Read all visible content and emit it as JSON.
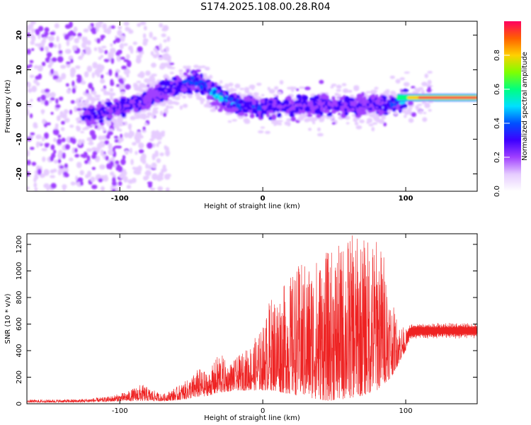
{
  "page": {
    "title": "S174.2025.108.00.28.R04"
  },
  "colors": {
    "scale": [
      "#ffffff",
      "#e6ccff",
      "#a040ff",
      "#3d00ff",
      "#0050ff",
      "#00e0ff",
      "#00ff80",
      "#80ff00",
      "#ffd000",
      "#ff6000",
      "#ff0060"
    ],
    "snr_line": "#ee2222"
  },
  "chart_data": [
    {
      "type": "heatmap",
      "xlabel": "Height of straight line (km)",
      "ylabel": "Frequency (Hz)",
      "xlim": [
        -165,
        150
      ],
      "ylim": [
        -25,
        24
      ],
      "x_ticks": [
        -100,
        0,
        100
      ],
      "y_ticks": [
        -20,
        -10,
        0,
        10,
        20
      ],
      "x_tick_labels": [
        "-100",
        "0",
        "100"
      ],
      "y_tick_labels": [
        "-20",
        "-10",
        "0",
        "10",
        "20"
      ],
      "grid": false,
      "ridge": {
        "x": [
          -125,
          -110,
          -90,
          -75,
          -60,
          -48,
          -40,
          -33,
          -25,
          -15,
          0,
          10,
          20,
          30,
          40,
          50,
          60,
          70,
          80,
          88,
          95,
          105,
          115,
          130,
          150
        ],
        "frequency": [
          -3,
          -2,
          0,
          3,
          5,
          7,
          5,
          3,
          1,
          0,
          -1,
          -1,
          -0.5,
          0,
          -0.5,
          0,
          -1,
          -0.5,
          0,
          0,
          1,
          2,
          2,
          2,
          2
        ],
        "amplitude": [
          0.35,
          0.35,
          0.3,
          0.3,
          0.35,
          0.45,
          0.45,
          0.6,
          0.55,
          0.45,
          0.35,
          0.35,
          0.35,
          0.3,
          0.3,
          0.3,
          0.3,
          0.3,
          0.3,
          0.4,
          0.55,
          0.75,
          0.9,
          1.0,
          1.0
        ]
      },
      "colorbar": {
        "label": "Normalized spectral amplitude",
        "range": [
          0,
          1
        ],
        "ticks": [
          0.0,
          0.2,
          0.4,
          0.6,
          0.8
        ],
        "tick_labels": [
          "0.0",
          "0.2",
          "0.4",
          "0.6",
          "0.8"
        ]
      }
    },
    {
      "type": "line",
      "xlabel": "Height of straight line (km)",
      "ylabel": "SNR (10 * v/v)",
      "xlim": [
        -165,
        150
      ],
      "ylim": [
        0,
        1280
      ],
      "x_ticks": [
        -100,
        0,
        100
      ],
      "y_ticks": [
        0,
        200,
        400,
        600,
        800,
        1000,
        1200
      ],
      "x_tick_labels": [
        "-100",
        "0",
        "100"
      ],
      "y_tick_labels": [
        "0",
        "200",
        "400",
        "600",
        "800",
        "1000",
        "1200"
      ],
      "grid": false,
      "envelope": {
        "x": [
          -165,
          -130,
          -110,
          -95,
          -85,
          -78,
          -70,
          -60,
          -50,
          -45,
          -38,
          -30,
          -25,
          -20,
          -10,
          0,
          5,
          15,
          25,
          35,
          45,
          55,
          60,
          70,
          80,
          85,
          90,
          95,
          100,
          103,
          110,
          125,
          150
        ],
        "max": [
          30,
          35,
          50,
          90,
          150,
          110,
          70,
          130,
          200,
          270,
          230,
          400,
          300,
          330,
          430,
          580,
          800,
          900,
          1050,
          1100,
          1150,
          1200,
          1280,
          1250,
          1260,
          1150,
          780,
          620,
          560,
          600,
          610,
          610,
          610
        ],
        "min": [
          10,
          10,
          15,
          20,
          20,
          20,
          20,
          25,
          40,
          50,
          60,
          80,
          90,
          100,
          100,
          100,
          100,
          80,
          60,
          40,
          20,
          30,
          40,
          60,
          100,
          150,
          200,
          300,
          400,
          480,
          490,
          490,
          490
        ]
      }
    }
  ]
}
